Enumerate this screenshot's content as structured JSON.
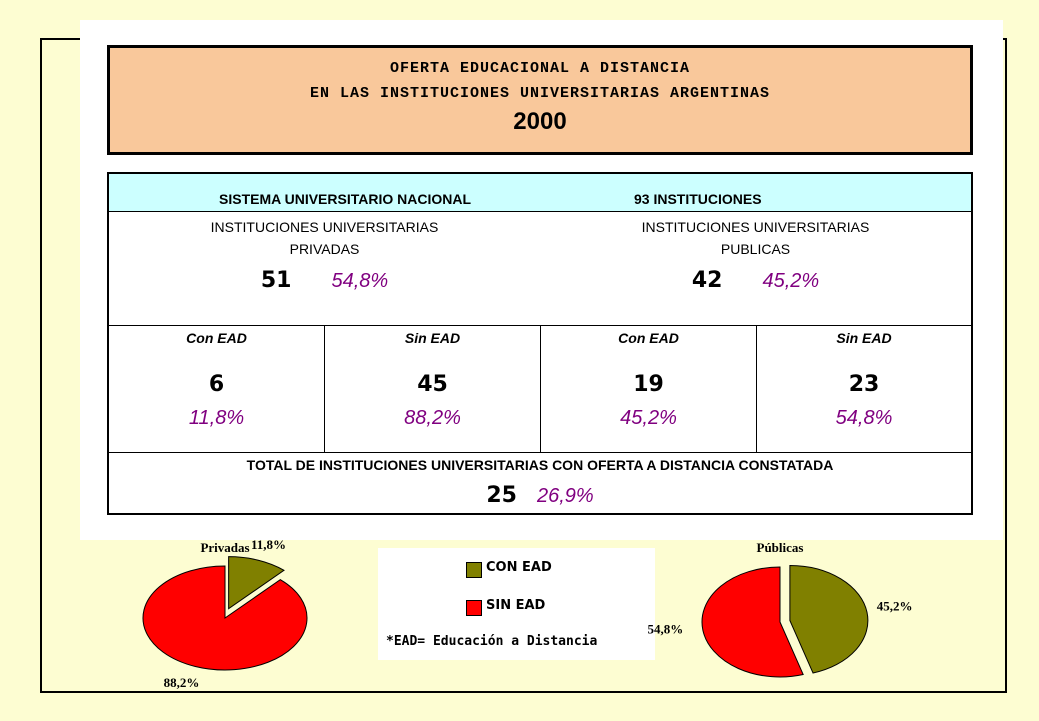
{
  "header": {
    "line1": "OFERTA EDUCACIONAL A DISTANCIA",
    "line2": "EN LAS INSTITUCIONES UNIVERSITARIAS ARGENTINAS",
    "year": "2000"
  },
  "table": {
    "top": {
      "left": "SISTEMA UNIVERSITARIO NACIONAL",
      "right": "93 INSTITUCIONES"
    },
    "groups": [
      {
        "label": "INSTITUCIONES UNIVERSITARIAS PRIVADAS",
        "count": 51,
        "pct": "54,8%"
      },
      {
        "label": "INSTITUCIONES UNIVERSITARIAS PUBLICAS",
        "count": 42,
        "pct": "45,2%"
      }
    ],
    "cells": [
      {
        "label": "Con EAD",
        "count": 6,
        "pct": "11,8%"
      },
      {
        "label": "Sin EAD",
        "count": 45,
        "pct": "88,2%"
      },
      {
        "label": "Con EAD",
        "count": 19,
        "pct": "45,2%"
      },
      {
        "label": "Sin EAD",
        "count": 23,
        "pct": "54,8%"
      }
    ],
    "total": {
      "label": "TOTAL DE INSTITUCIONES UNIVERSITARIAS CON OFERTA A DISTANCIA CONSTATADA",
      "count": 25,
      "pct": "26,9%"
    }
  },
  "legend_note": "*EAD= Educación a Distancia",
  "chart_data": [
    {
      "type": "pie",
      "title": "Privadas",
      "categories": [
        "CON EAD",
        "SIN EAD"
      ],
      "values": [
        11.8,
        88.2
      ],
      "value_labels": [
        "11,8%",
        "88,2%"
      ],
      "colors": [
        "#808000",
        "#ff0000"
      ],
      "exploded": [
        true,
        false
      ]
    },
    {
      "type": "pie",
      "title": "Públicas",
      "categories": [
        "CON EAD",
        "SIN EAD"
      ],
      "values": [
        45.2,
        54.8
      ],
      "value_labels": [
        "45,2%",
        "54,8%"
      ],
      "colors": [
        "#808000",
        "#ff0000"
      ],
      "exploded": [
        true,
        false
      ]
    }
  ]
}
